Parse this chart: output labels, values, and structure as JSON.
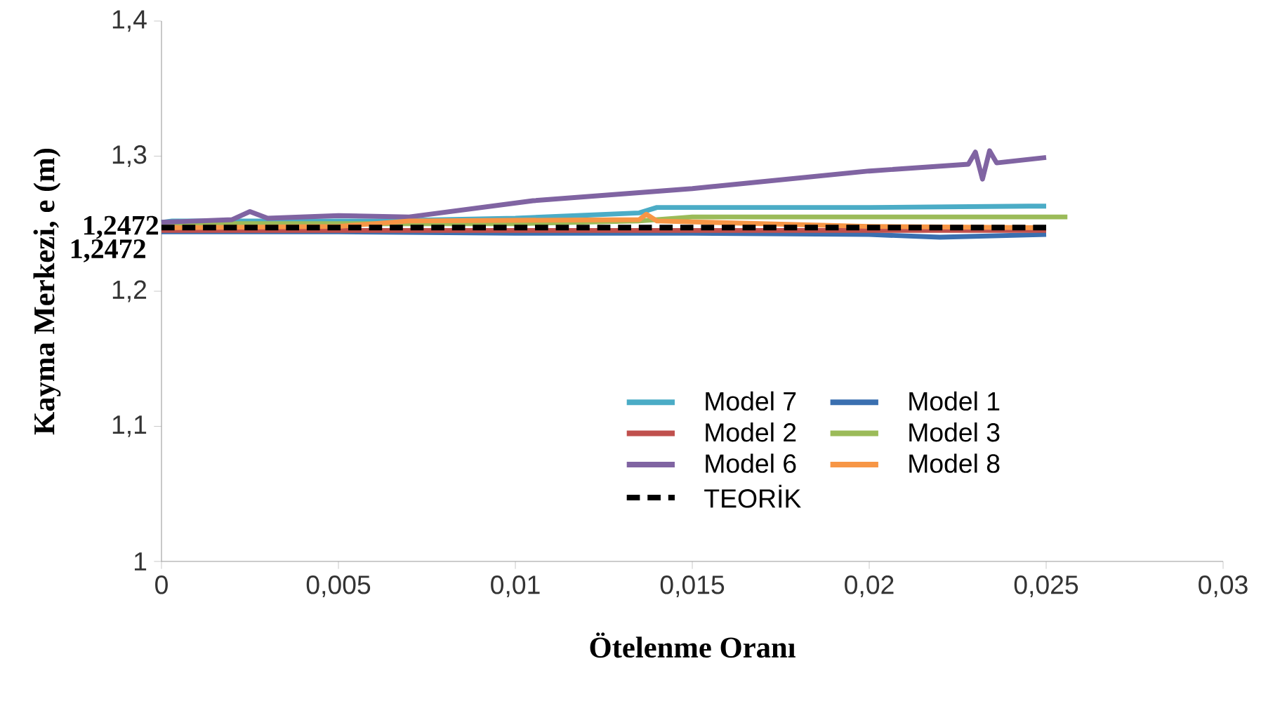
{
  "chart_data": {
    "type": "line",
    "xlabel": "Ötelenme Oranı",
    "ylabel": "Kayma Merkezi, e (m)",
    "xlim": [
      0,
      0.03
    ],
    "ylim": [
      1,
      1.4
    ],
    "xticks": [
      0,
      {
        "value": 0.005,
        "label": "0,005"
      },
      {
        "value": 0.01,
        "label": "0,01"
      },
      {
        "value": 0.015,
        "label": "0,015"
      },
      {
        "value": 0.02,
        "label": "0,02"
      },
      {
        "value": 0.025,
        "label": "0,025"
      },
      {
        "value": 0.03,
        "label": "0,03"
      }
    ],
    "yticks": [
      1,
      {
        "value": 1.1,
        "label": "1,1"
      },
      {
        "value": 1.2,
        "label": "1,2"
      },
      {
        "value": 1.3,
        "label": "1,3"
      },
      {
        "value": 1.4,
        "label": "1,4"
      }
    ],
    "grid": false,
    "legend": "bottom right",
    "annotations": [
      {
        "text": "1,2472",
        "x": 0,
        "y": 1.2472
      },
      "1,2472"
    ],
    "series": [
      {
        "name": "Model 7",
        "color": "#4bacc6",
        "x": [
          0,
          0.0003,
          0.002,
          0.006,
          0.01,
          0.0135,
          0.014,
          0.02,
          0.0245,
          0.025
        ],
        "values": [
          1.251,
          1.252,
          1.252,
          1.252,
          1.254,
          1.258,
          1.262,
          1.262,
          1.263,
          1.263
        ]
      },
      {
        "name": "Model 1",
        "color": "#3a6fb0",
        "x": [
          0,
          0.005,
          0.01,
          0.015,
          0.02,
          0.022,
          0.025
        ],
        "values": [
          1.244,
          1.244,
          1.243,
          1.243,
          1.242,
          1.24,
          1.242
        ]
      },
      {
        "name": "Model 2",
        "color": "#c0504d",
        "x": [
          0,
          0.005,
          0.01,
          0.015,
          0.02,
          0.025
        ],
        "values": [
          1.245,
          1.245,
          1.245,
          1.245,
          1.245,
          1.245
        ]
      },
      {
        "name": "Model 3",
        "color": "#9bbb59",
        "x": [
          0,
          0.005,
          0.01,
          0.0135,
          0.015,
          0.02,
          0.0256
        ],
        "values": [
          1.25,
          1.25,
          1.25,
          1.252,
          1.255,
          1.255,
          1.255
        ]
      },
      {
        "name": "Model 6",
        "color": "#8064a2",
        "x": [
          0,
          0.002,
          0.0025,
          0.003,
          0.005,
          0.007,
          0.0105,
          0.015,
          0.02,
          0.0228,
          0.023,
          0.0232,
          0.0234,
          0.0236,
          0.025
        ],
        "values": [
          1.251,
          1.253,
          1.259,
          1.254,
          1.256,
          1.255,
          1.267,
          1.276,
          1.289,
          1.294,
          1.303,
          1.283,
          1.304,
          1.295,
          1.299
        ]
      },
      {
        "name": "Model 8",
        "color": "#f79646",
        "x": [
          0,
          0.005,
          0.007,
          0.0135,
          0.0137,
          0.014,
          0.02,
          0.025
        ],
        "values": [
          1.247,
          1.248,
          1.252,
          1.253,
          1.257,
          1.252,
          1.248,
          1.247
        ]
      },
      {
        "name": "TEORİK",
        "color": "#000000",
        "line_style": "dashed",
        "x": [
          0,
          0.025
        ],
        "values": [
          1.2472,
          1.2472
        ]
      }
    ]
  }
}
